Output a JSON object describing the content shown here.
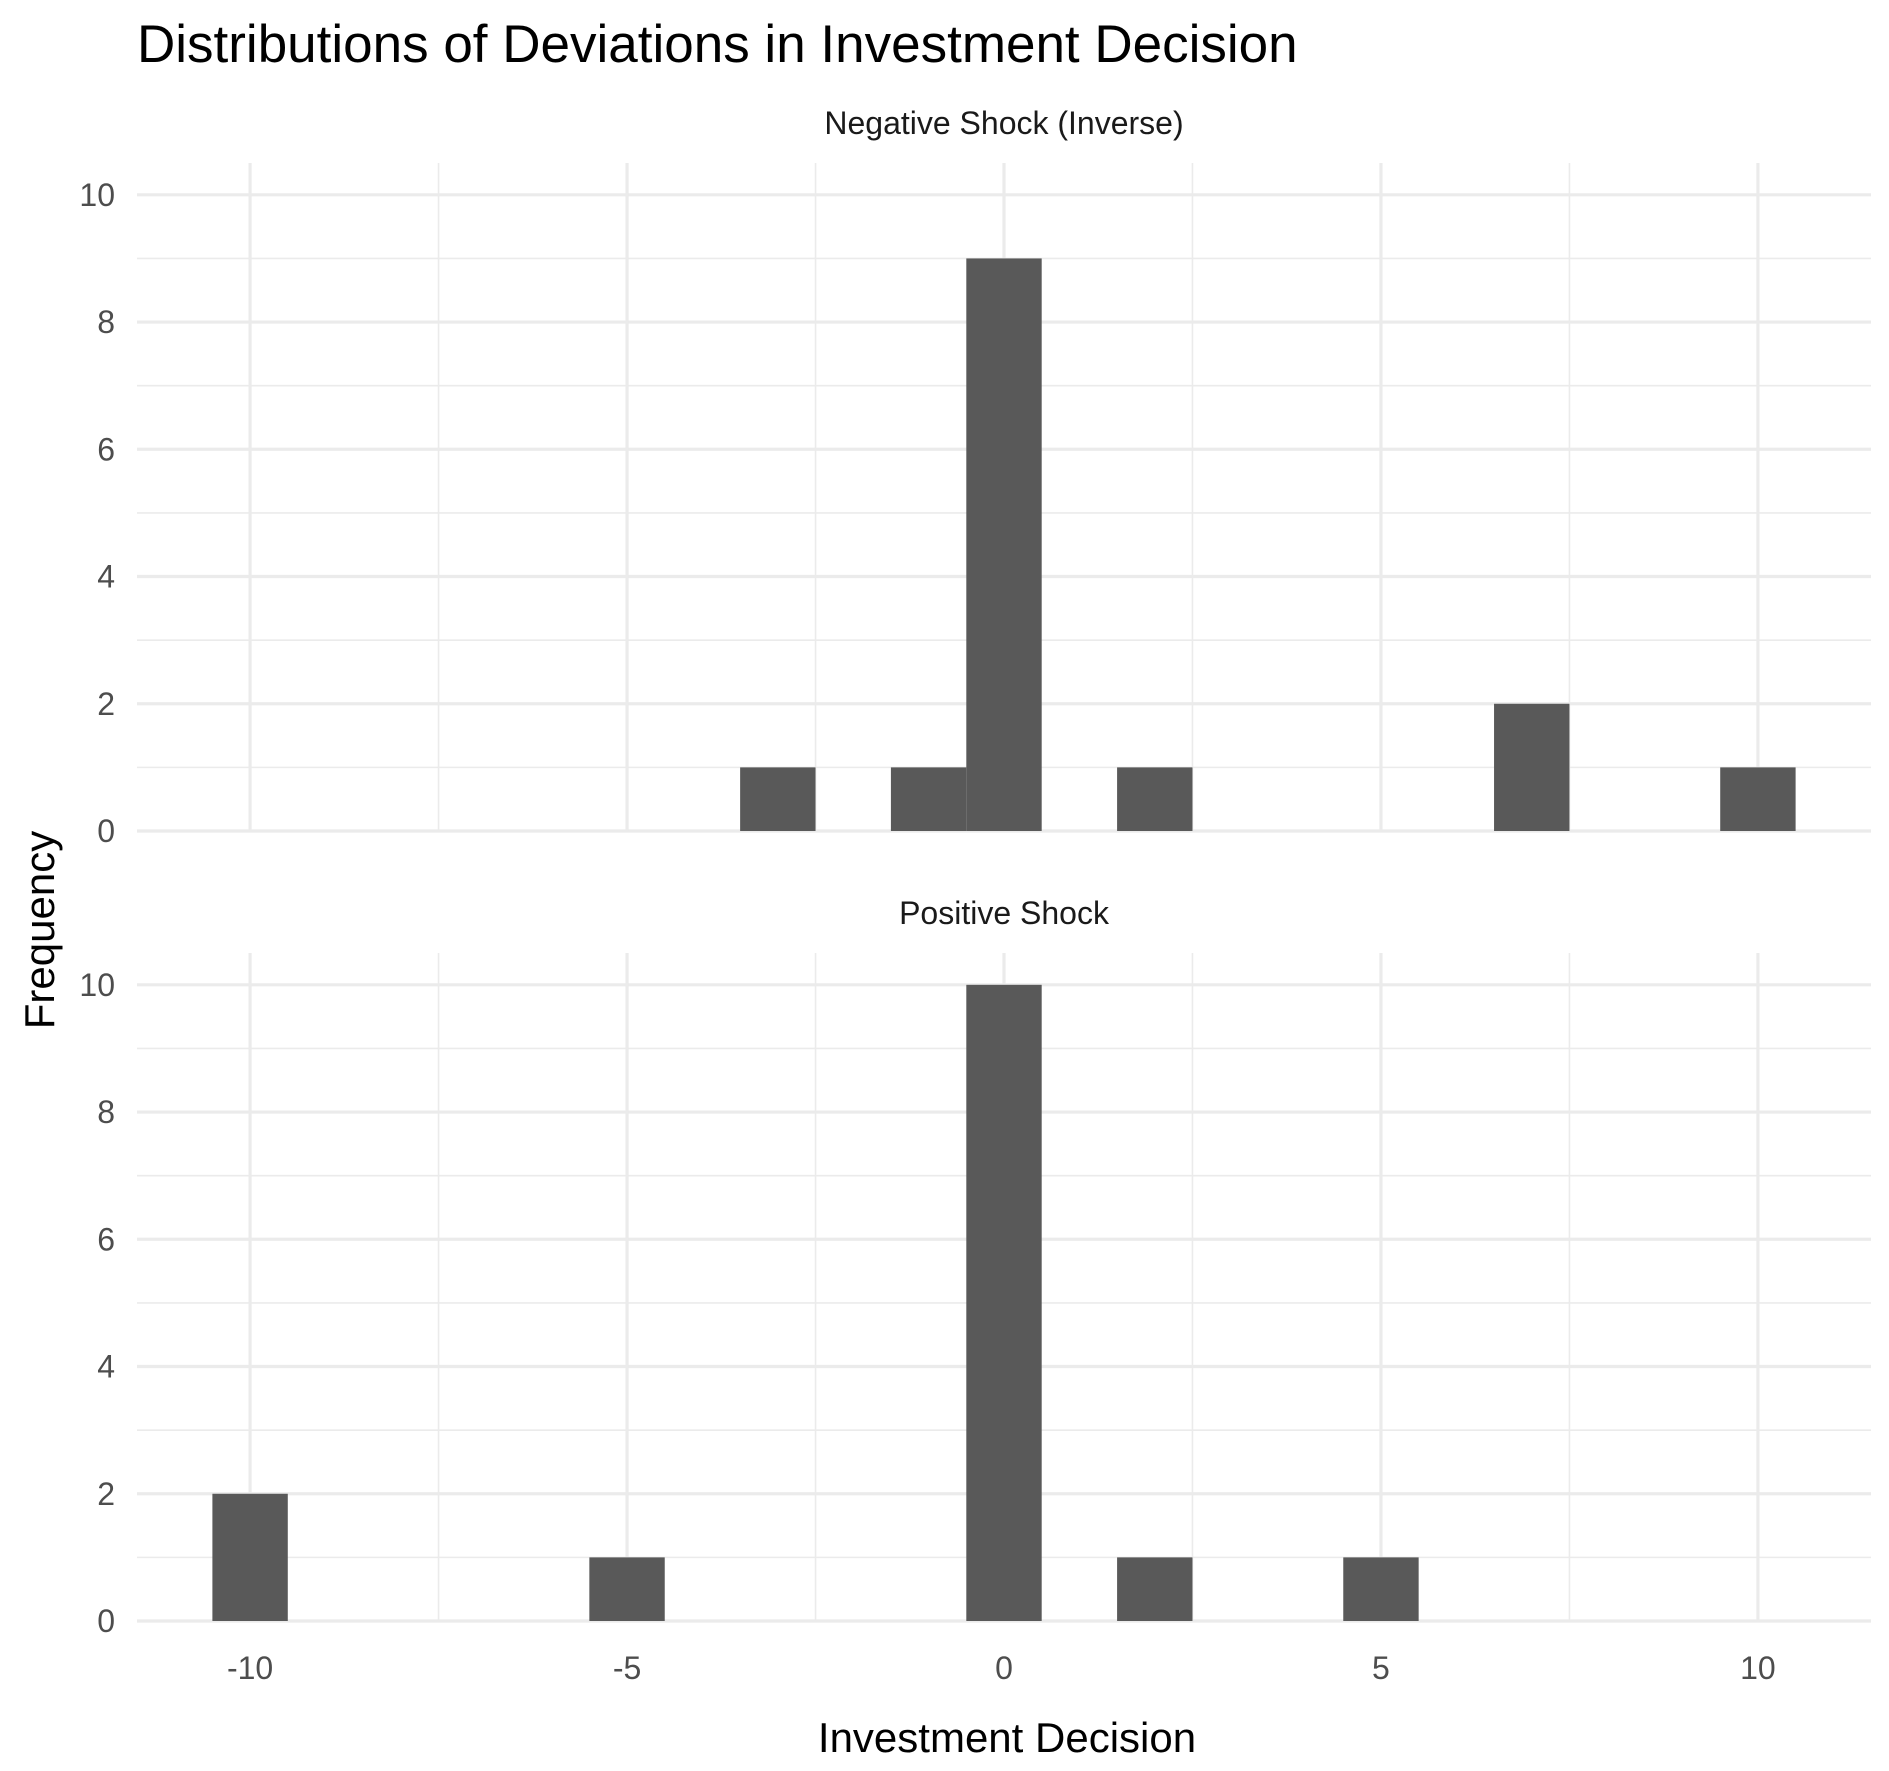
{
  "chart_data": {
    "type": "bar",
    "title": "Distributions of Deviations in Investment Decision",
    "xlabel": "Investment Decision",
    "ylabel": "Frequency",
    "xlim": [
      -11.5,
      11.5
    ],
    "ylim": [
      0,
      10.5
    ],
    "x_ticks": [
      -10,
      -5,
      0,
      5,
      10
    ],
    "x_tick_labels": [
      "-10",
      "-5",
      "0",
      "5",
      "10"
    ],
    "y_ticks": [
      0,
      2,
      4,
      6,
      8,
      10
    ],
    "y_tick_labels": [
      "0",
      "2",
      "4",
      "6",
      "8",
      "10"
    ],
    "bin_width": 1,
    "grid": true,
    "panels": [
      {
        "name": "Negative Shock (Inverse)",
        "bins": [
          {
            "x": -3,
            "count": 1
          },
          {
            "x": -1,
            "count": 1
          },
          {
            "x": 0,
            "count": 9
          },
          {
            "x": 2,
            "count": 1
          },
          {
            "x": 7,
            "count": 2
          },
          {
            "x": 10,
            "count": 1
          }
        ]
      },
      {
        "name": "Positive Shock",
        "bins": [
          {
            "x": -10,
            "count": 2
          },
          {
            "x": -5,
            "count": 1
          },
          {
            "x": 0,
            "count": 10
          },
          {
            "x": 2,
            "count": 1
          },
          {
            "x": 5,
            "count": 1
          }
        ]
      }
    ],
    "bar_color": "#595959",
    "grid_color": "#ebebeb"
  }
}
